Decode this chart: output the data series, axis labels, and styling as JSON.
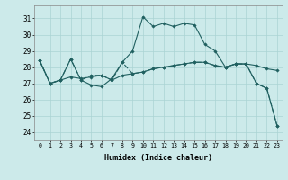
{
  "xlabel": "Humidex (Indice chaleur)",
  "background_color": "#cceaea",
  "grid_color": "#aad4d4",
  "line_color": "#206060",
  "x_labels": [
    "0",
    "1",
    "2",
    "3",
    "4",
    "5",
    "6",
    "7",
    "8",
    "9",
    "10",
    "11",
    "12",
    "13",
    "14",
    "15",
    "16",
    "17",
    "18",
    "19",
    "20",
    "21",
    "22",
    "23"
  ],
  "ylim": [
    23.5,
    31.8
  ],
  "yticks": [
    24,
    25,
    26,
    27,
    28,
    29,
    30,
    31
  ],
  "line1": [
    28.4,
    27.0,
    27.2,
    28.5,
    27.2,
    26.9,
    26.8,
    27.3,
    28.3,
    29.0,
    31.1,
    30.5,
    30.7,
    30.5,
    30.7,
    30.6,
    29.4,
    29.0,
    28.0,
    28.2,
    28.2,
    27.0,
    26.7,
    24.4
  ],
  "line2": [
    28.4,
    27.0,
    27.2,
    27.4,
    27.3,
    27.4,
    27.5,
    27.2,
    27.5,
    27.6,
    27.7,
    27.9,
    28.0,
    28.1,
    28.2,
    28.3,
    28.3,
    28.1,
    28.0,
    28.2,
    28.2,
    28.1,
    27.9,
    27.8
  ],
  "line3": [
    28.4,
    27.0,
    27.2,
    28.5,
    27.2,
    27.5,
    27.5,
    27.2,
    28.3,
    27.6,
    27.7,
    27.9,
    28.0,
    28.1,
    28.2,
    28.3,
    28.3,
    28.1,
    28.0,
    28.2,
    28.2,
    27.0,
    26.7,
    24.4
  ]
}
